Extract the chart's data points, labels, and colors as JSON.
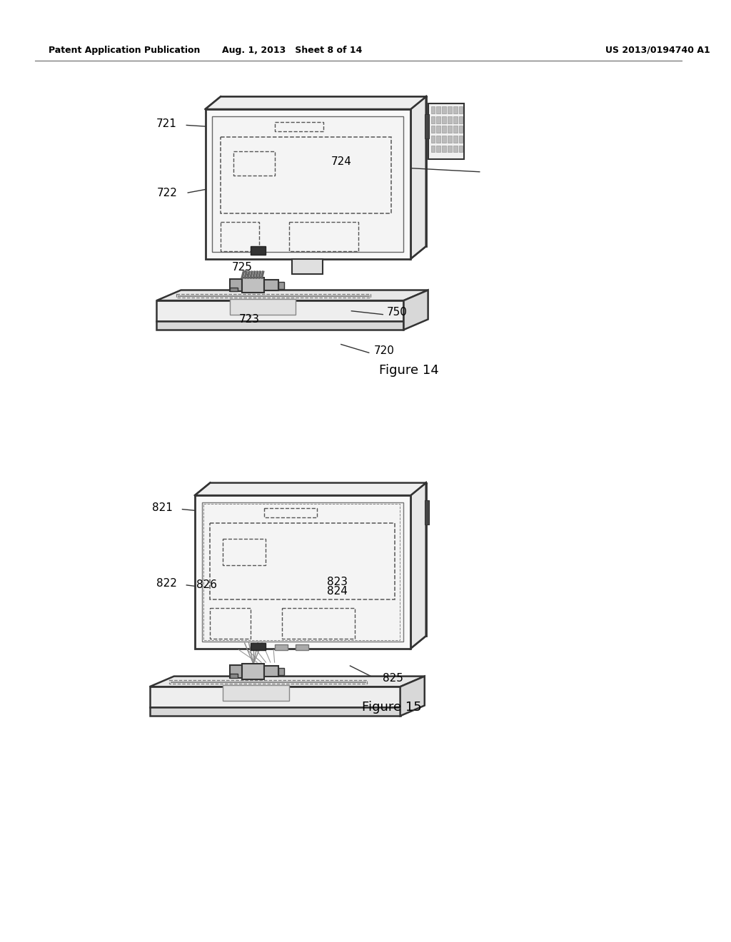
{
  "bg_color": "#ffffff",
  "header_left": "Patent Application Publication",
  "header_mid": "Aug. 1, 2013   Sheet 8 of 14",
  "header_right": "US 2013/0194740 A1",
  "fig14_label": "Figure 14",
  "fig15_label": "Figure 15",
  "lc": "#333333",
  "tc": "#000000",
  "gray1": "#aaaaaa",
  "gray2": "#bbbbbb",
  "gray3": "#888888",
  "dark": "#333333",
  "light_gray": "#dddddd"
}
